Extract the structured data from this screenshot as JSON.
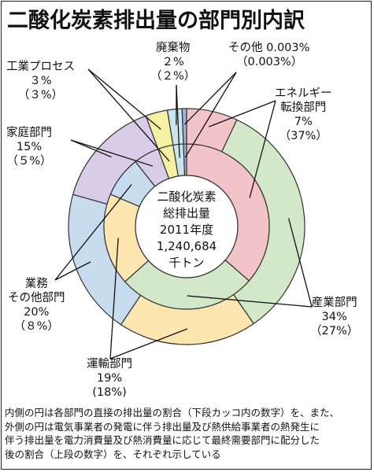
{
  "title": "二酸化炭素排出量の部門別内訳",
  "center": {
    "line1": "二酸化炭素",
    "line2": "総排出量",
    "line3": "2011年度",
    "line4": "1,240,684",
    "line5": "千トン"
  },
  "chart_data": {
    "type": "pie",
    "subtype": "double-donut",
    "categories": [
      "エネルギー転換部門",
      "産業部門",
      "運輸部門",
      "業務その他部門",
      "家庭部門",
      "工業プロセス",
      "廃棄物",
      "その他"
    ],
    "series": [
      {
        "ring": "outer",
        "values": [
          7,
          34,
          19,
          20,
          15,
          3,
          2,
          0.003
        ]
      },
      {
        "ring": "inner",
        "values": [
          37,
          27,
          18,
          8,
          5,
          3,
          2,
          0.003
        ]
      }
    ],
    "labels": [
      {
        "name_lines": [
          "エネルギー",
          "転換部門"
        ],
        "outer": "7%",
        "inner": "（37%）"
      },
      {
        "name_lines": [
          "産業部門"
        ],
        "outer": "34%",
        "inner": "（27%）"
      },
      {
        "name_lines": [
          "運輸部門"
        ],
        "outer": "19%",
        "inner": "(18%)"
      },
      {
        "name_lines": [
          "業務",
          "その他部門"
        ],
        "outer": "20%",
        "inner": "（８%）"
      },
      {
        "name_lines": [
          "家庭部門"
        ],
        "outer": "15%",
        "inner": "（５%）"
      },
      {
        "name_lines": [
          "工業プロセス"
        ],
        "outer": "３%",
        "inner": "（３%）"
      },
      {
        "name_lines": [
          "廃棄物"
        ],
        "outer": "２%",
        "inner": "（２%）"
      },
      {
        "name_lines": [
          "その他"
        ],
        "outer": "0.003%",
        "inner": "（0.003%）"
      }
    ],
    "colors": [
      "#f2c4c8",
      "#d3e8c8",
      "#fde6b0",
      "#c8dcf0",
      "#d8cce8",
      "#f6f0a4",
      "#cce4ec",
      "#9cb0dc"
    ]
  },
  "footnote": {
    "line1": "内側の円は各部門の直接の排出量の割合（下段カッコ内の数字）を、また、",
    "line2": "外側の円は電気事業者の発電に伴う排出量及び熱供給事業者の熱発生に",
    "line3": "伴う排出量を電力消費量及び熱消費量に応じて最終需要部門に配分した",
    "line4": "後の割合（上段の数字）を、それぞれ示している"
  }
}
